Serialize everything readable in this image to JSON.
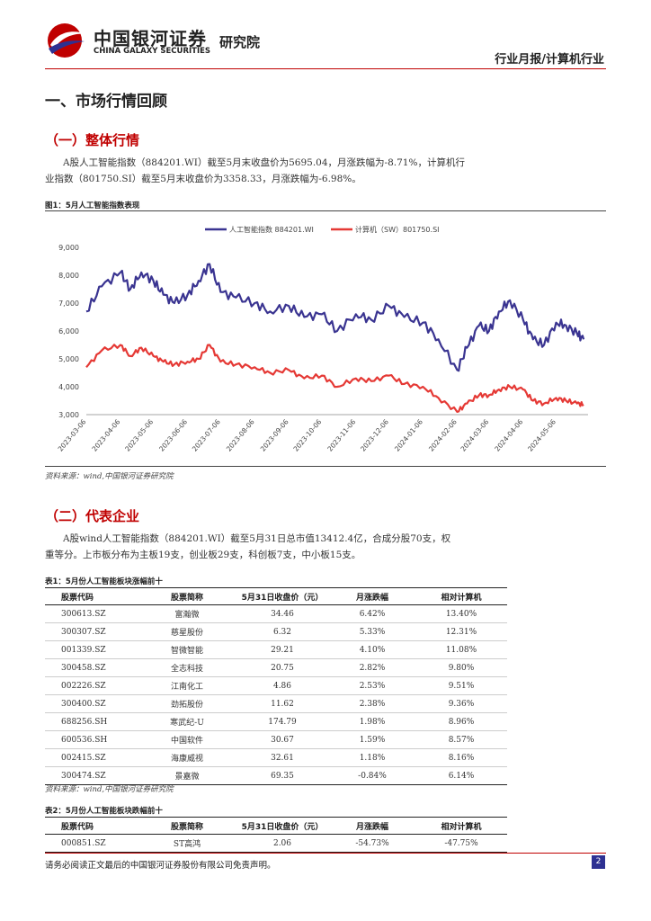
{
  "header": {
    "brand_cn": "中国银河证券",
    "brand_en": "CHINA GALAXY SECURITIES",
    "research_label": "研究院",
    "report_type": "行业月报/计算机行业"
  },
  "section1": {
    "title": "一、市场行情回顾",
    "sub1": {
      "title": "（一）整体行情",
      "para1": "A股人工智能指数（884201.WI）截至5月末收盘价为5695.04，月涨跌幅为-8.71%，计算机行",
      "para2": "业指数（801750.SI）截至5月末收盘价为3358.33，月涨跌幅为-6.98%。"
    },
    "figure1": {
      "caption": "图1：5月人工智能指数表现",
      "source": "资料来源：wind,中国银河证券研究院"
    },
    "sub2": {
      "title": "（二）代表企业",
      "para1": "A股wind人工智能指数（884201.WI）截至5月31日总市值13412.4亿，合成分股70支，权",
      "para2": "重等分。上市板分布为主板19支，创业板29支，科创板7支，中小板15支。"
    }
  },
  "chart_data": {
    "type": "line",
    "title": "",
    "ylim": [
      3000,
      9000
    ],
    "yticks": [
      "9,000",
      "8,000",
      "7,000",
      "6,000",
      "5,000",
      "4,000",
      "3,000"
    ],
    "xticks": [
      "2023-03-06",
      "2023-04-06",
      "2023-05-06",
      "2023-06-06",
      "2023-07-06",
      "2023-08-06",
      "2023-09-06",
      "2023-10-06",
      "2023-11-06",
      "2023-12-06",
      "2024-01-06",
      "2024-02-06",
      "2024-03-06",
      "2024-04-06",
      "2024-05-06"
    ],
    "legend_position": "top",
    "series": [
      {
        "name": "人工智能指数 884201.WI",
        "color": "#3a3491",
        "x": [
          "2023-03-06",
          "2023-03-20",
          "2023-04-06",
          "2023-04-15",
          "2023-04-25",
          "2023-05-06",
          "2023-05-15",
          "2023-05-25",
          "2023-06-06",
          "2023-06-16",
          "2023-06-26",
          "2023-07-06",
          "2023-07-20",
          "2023-08-06",
          "2023-08-20",
          "2023-09-06",
          "2023-09-20",
          "2023-10-06",
          "2023-10-20",
          "2023-11-06",
          "2023-11-20",
          "2023-12-06",
          "2023-12-20",
          "2024-01-06",
          "2024-01-20",
          "2024-02-06",
          "2024-02-15",
          "2024-02-26",
          "2024-03-06",
          "2024-03-15",
          "2024-03-25",
          "2024-04-06",
          "2024-04-15",
          "2024-04-25",
          "2024-05-06",
          "2024-05-15",
          "2024-05-25",
          "2024-05-31"
        ],
        "values": [
          6700,
          7600,
          8100,
          7500,
          8100,
          7800,
          7300,
          7000,
          7300,
          7800,
          8400,
          7400,
          7200,
          7000,
          6700,
          6900,
          6500,
          6600,
          6000,
          6600,
          6400,
          6900,
          6500,
          6300,
          5700,
          4600,
          5400,
          6200,
          6000,
          6700,
          7100,
          6400,
          5700,
          5500,
          6300,
          6200,
          5900,
          5700
        ]
      },
      {
        "name": "计算机（SW）801750.SI",
        "color": "#e53935",
        "x": [
          "2023-03-06",
          "2023-03-20",
          "2023-04-06",
          "2023-04-15",
          "2023-04-25",
          "2023-05-06",
          "2023-05-15",
          "2023-05-25",
          "2023-06-06",
          "2023-06-16",
          "2023-06-26",
          "2023-07-06",
          "2023-07-20",
          "2023-08-06",
          "2023-08-20",
          "2023-09-06",
          "2023-09-20",
          "2023-10-06",
          "2023-10-20",
          "2023-11-06",
          "2023-11-20",
          "2023-12-06",
          "2023-12-20",
          "2024-01-06",
          "2024-01-20",
          "2024-02-06",
          "2024-02-15",
          "2024-02-26",
          "2024-03-06",
          "2024-03-15",
          "2024-03-25",
          "2024-04-06",
          "2024-04-15",
          "2024-04-25",
          "2024-05-06",
          "2024-05-15",
          "2024-05-25",
          "2024-05-31"
        ],
        "values": [
          4700,
          5300,
          5500,
          5100,
          5400,
          5100,
          4900,
          4800,
          4900,
          5000,
          5500,
          4900,
          4800,
          4700,
          4500,
          4600,
          4300,
          4400,
          4000,
          4300,
          4200,
          4400,
          4100,
          4000,
          3600,
          3100,
          3400,
          3700,
          3700,
          3900,
          4000,
          3900,
          3500,
          3400,
          3600,
          3500,
          3400,
          3358
        ]
      }
    ]
  },
  "table1": {
    "caption": "表1：5月份人工智能板块涨幅前十",
    "headers": [
      "股票代码",
      "股票简称",
      "5月31日收盘价（元）",
      "月涨跌幅",
      "相对计算机"
    ],
    "rows": [
      [
        "300613.SZ",
        "富瀚微",
        "34.46",
        "6.42%",
        "13.40%"
      ],
      [
        "300307.SZ",
        "慈星股份",
        "6.32",
        "5.33%",
        "12.31%"
      ],
      [
        "001339.SZ",
        "智微智能",
        "29.21",
        "4.10%",
        "11.08%"
      ],
      [
        "300458.SZ",
        "全志科技",
        "20.75",
        "2.82%",
        "9.80%"
      ],
      [
        "002226.SZ",
        "江南化工",
        "4.86",
        "2.53%",
        "9.51%"
      ],
      [
        "300400.SZ",
        "劲拓股份",
        "11.62",
        "2.38%",
        "9.36%"
      ],
      [
        "688256.SH",
        "寒武纪-U",
        "174.79",
        "1.98%",
        "8.96%"
      ],
      [
        "600536.SH",
        "中国软件",
        "30.67",
        "1.59%",
        "8.57%"
      ],
      [
        "002415.SZ",
        "海康威视",
        "32.61",
        "1.18%",
        "8.16%"
      ],
      [
        "300474.SZ",
        "景嘉微",
        "69.35",
        "-0.84%",
        "6.14%"
      ]
    ],
    "source": "资料来源：wind,中国银河证券研究院"
  },
  "table2": {
    "caption": "表2：5月份人工智能板块跌幅前十",
    "headers": [
      "股票代码",
      "股票简称",
      "5月31日收盘价（元）",
      "月涨跌幅",
      "相对计算机"
    ],
    "rows": [
      [
        "000851.SZ",
        "ST高鸿",
        "2.06",
        "-54.73%",
        "-47.75%"
      ]
    ]
  },
  "footer": {
    "disclaimer": "请务必阅读正文最后的中国银河证券股份有限公司免责声明。",
    "page": "2"
  }
}
